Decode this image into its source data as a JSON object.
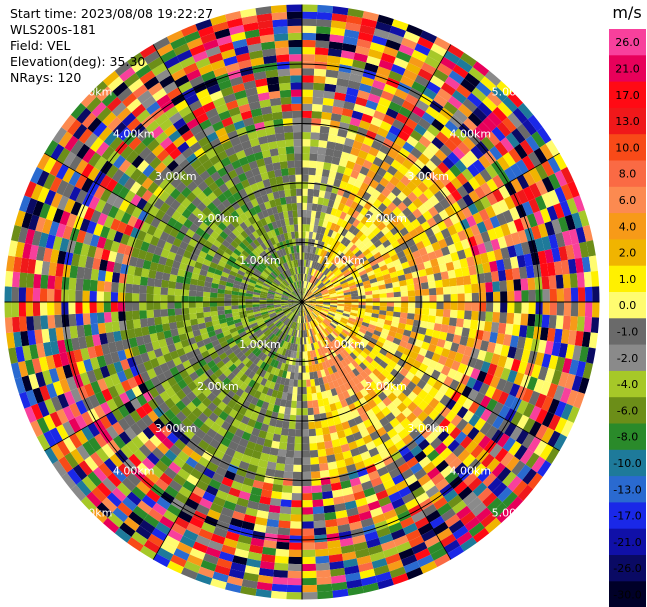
{
  "header": {
    "start_time": "Start time: 2023/08/08 19:22:27",
    "instrument": "WLS200s-181",
    "field": "Field: VEL",
    "elevation": "Elevation(deg): 35.30",
    "nrays": "NRays: 120"
  },
  "chart_data": {
    "type": "heatmap",
    "subtype": "polar-ppi",
    "field": "VEL",
    "units": "m/s",
    "nrays": 120,
    "elevation_deg": 35.3,
    "range_rings_km": [
      1.0,
      2.0,
      3.0,
      4.0
    ],
    "range_ring_labels": [
      "1.00km",
      "2.00km",
      "3.00km",
      "4.00km",
      "5.00km"
    ],
    "max_range_km": 5.0,
    "spokes_deg": [
      0,
      30,
      60,
      90,
      120,
      150,
      180,
      210,
      240,
      270,
      300,
      330
    ],
    "colorbar": {
      "label": "m/s",
      "ticks": [
        "26.0",
        "21.0",
        "17.0",
        "13.0",
        "10.0",
        "8.0",
        "6.0",
        "4.0",
        "2.0",
        "1.0",
        "0.0",
        "-1.0",
        "-2.0",
        "-4.0",
        "-6.0",
        "-8.0",
        "-10.0",
        "-13.0",
        "-17.0",
        "-21.0",
        "-26.0",
        "-30.0"
      ],
      "colors": [
        "#f8409c",
        "#e8005a",
        "#ff0a14",
        "#f0181a",
        "#f84a18",
        "#fa6a44",
        "#fc8a50",
        "#f79a18",
        "#f0b400",
        "#fff000",
        "#fffc70",
        "#6a6a6a",
        "#8a8a8a",
        "#a6c828",
        "#6c8e18",
        "#2a8a2a",
        "#1e7a9a",
        "#2a6ad0",
        "#1a28e8",
        "#1010a8",
        "#0a0a64",
        "#000028"
      ]
    },
    "pattern_summary": {
      "west_and_northwest": "negative velocities (-1 to -6 m/s, green)",
      "east_and_southeast": "positive velocities (1 to 6 m/s, yellow/orange)",
      "beyond_about_3km": "noisy, spans full colour range"
    }
  }
}
